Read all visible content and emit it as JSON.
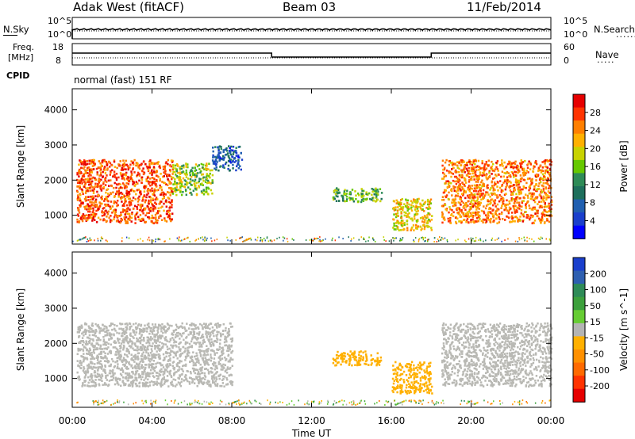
{
  "header": {
    "station": "Adak West (fitACF)",
    "beam": "Beam 03",
    "date": "11/Feb/2014"
  },
  "status_panel": {
    "nsky_label": "N.Sky",
    "nsearch_label": "N.Search",
    "noise_ticks": [
      "10^5",
      "10^0"
    ],
    "freq_label": "Freq.",
    "freq_unit": "[MHz]",
    "freq_ticks": [
      "18",
      "8"
    ],
    "nave_label": "Nave",
    "nave_ticks": [
      "60",
      "0"
    ],
    "cpid_label": "CPID",
    "cpid_text": "normal (fast) 151 RF"
  },
  "x_axis": {
    "label": "Time UT",
    "ticks": [
      "00:00",
      "04:00",
      "08:00",
      "12:00",
      "16:00",
      "20:00",
      "00:00"
    ]
  },
  "power_panel": {
    "ylabel": "Slant Range [km]",
    "yticks": [
      "4000",
      "3000",
      "2000",
      "1000"
    ],
    "cbar_label": "Power [dB]",
    "cbar_ticks": [
      "28",
      "24",
      "20",
      "16",
      "12",
      "8",
      "4"
    ],
    "cbar_colors": [
      "#e60000",
      "#ff3300",
      "#ff7f00",
      "#ffb000",
      "#c8d200",
      "#66c800",
      "#2e8b57",
      "#1e6f5c",
      "#205fb0",
      "#1a3fcc",
      "#0000ff"
    ]
  },
  "velocity_panel": {
    "ylabel": "Slant Range [km]",
    "yticks": [
      "4000",
      "3000",
      "2000",
      "1000"
    ],
    "cbar_label": "Velocity [m s^-1]",
    "cbar_ticks": [
      "200",
      "100",
      "50",
      "15",
      "-15",
      "-50",
      "-100",
      "-200"
    ],
    "cbar_colors": [
      "#1a3fcc",
      "#2e5fb0",
      "#2e8b57",
      "#3ca03c",
      "#66cc33",
      "#b4b4b4",
      "#ffb000",
      "#ff9000",
      "#ff6a00",
      "#ff3300",
      "#e60000"
    ]
  },
  "chart_data": [
    {
      "type": "heatmap",
      "title": "Power [dB]",
      "xlabel": "Time UT",
      "ylabel": "Slant Range [km]",
      "xlim_hours": [
        0,
        24
      ],
      "ylim_km": [
        180,
        4600
      ],
      "colorbar": {
        "label": "Power [dB]",
        "range": [
          0,
          30
        ],
        "ticks": [
          4,
          8,
          12,
          16,
          20,
          24,
          28
        ]
      },
      "regions": [
        {
          "t": [
            0.2,
            5.0
          ],
          "r": [
            800,
            2600
          ],
          "power_db": 26
        },
        {
          "t": [
            5.0,
            7.0
          ],
          "r": [
            1600,
            2500
          ],
          "power_db": 16
        },
        {
          "t": [
            7.0,
            8.5
          ],
          "r": [
            2300,
            3000
          ],
          "power_db": 6
        },
        {
          "t": [
            13.0,
            15.5
          ],
          "r": [
            1400,
            1800
          ],
          "power_db": 14
        },
        {
          "t": [
            16.0,
            18.0
          ],
          "r": [
            600,
            1500
          ],
          "power_db": 20
        },
        {
          "t": [
            18.5,
            24.0
          ],
          "r": [
            800,
            2600
          ],
          "power_db": 24
        }
      ]
    },
    {
      "type": "heatmap",
      "title": "Velocity [m s^-1]",
      "xlabel": "Time UT",
      "ylabel": "Slant Range [km]",
      "xlim_hours": [
        0,
        24
      ],
      "ylim_km": [
        180,
        4600
      ],
      "colorbar": {
        "label": "Velocity [m s^-1]",
        "range": [
          -250,
          250
        ],
        "ticks": [
          -200,
          -100,
          -50,
          -15,
          15,
          50,
          100,
          200
        ]
      },
      "regions": [
        {
          "t": [
            0.2,
            8.0
          ],
          "r": [
            800,
            2600
          ],
          "velocity_ms": 0
        },
        {
          "t": [
            13.0,
            15.5
          ],
          "r": [
            1400,
            1800
          ],
          "velocity_ms": -60
        },
        {
          "t": [
            16.0,
            18.0
          ],
          "r": [
            600,
            1500
          ],
          "velocity_ms": -40
        },
        {
          "t": [
            18.5,
            24.0
          ],
          "r": [
            800,
            2600
          ],
          "velocity_ms": 0
        }
      ]
    }
  ]
}
